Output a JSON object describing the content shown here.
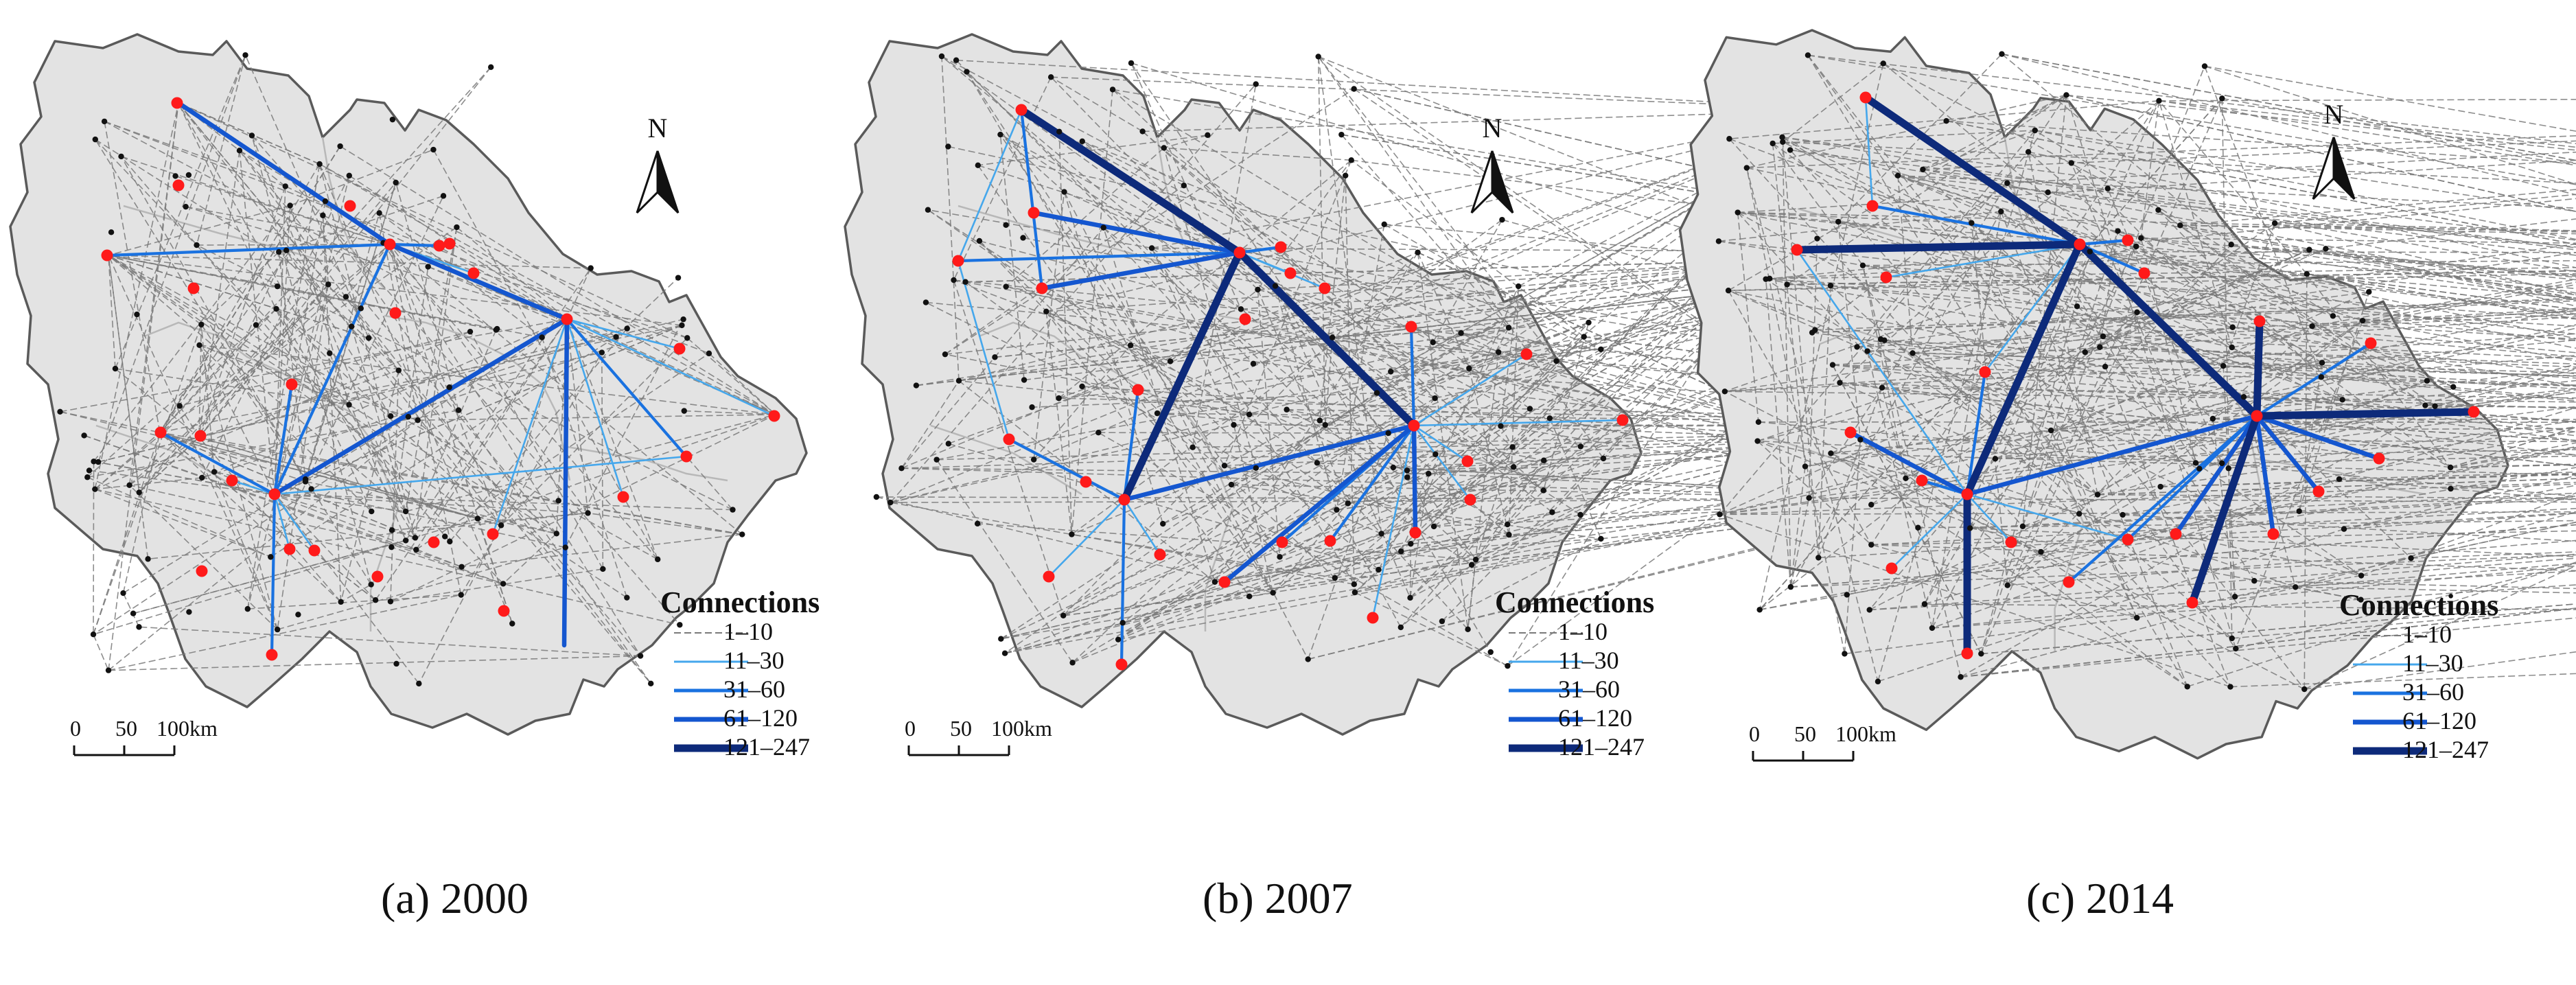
{
  "panels": [
    {
      "id": "a",
      "caption": "(a) 2000",
      "hubs": [
        [
          260,
          150
        ],
        [
          568,
          356
        ],
        [
          158,
          372
        ],
        [
          826,
          465
        ],
        [
          400,
          720
        ],
        [
          290,
          637
        ],
        [
          1130,
          604
        ],
        [
          233,
          630
        ]
      ],
      "red_nodes": [
        [
          258,
          150
        ],
        [
          568,
          356
        ],
        [
          156,
          372
        ],
        [
          282,
          420
        ],
        [
          510,
          300
        ],
        [
          640,
          358
        ],
        [
          655,
          355
        ],
        [
          690,
          398
        ],
        [
          576,
          456
        ],
        [
          826,
          465
        ],
        [
          990,
          508
        ],
        [
          1128,
          606
        ],
        [
          1000,
          665
        ],
        [
          908,
          724
        ],
        [
          718,
          778
        ],
        [
          632,
          790
        ],
        [
          550,
          840
        ],
        [
          734,
          890
        ],
        [
          400,
          720
        ],
        [
          425,
          560
        ],
        [
          292,
          635
        ],
        [
          234,
          630
        ],
        [
          338,
          700
        ],
        [
          422,
          800
        ],
        [
          458,
          802
        ],
        [
          396,
          954
        ],
        [
          294,
          832
        ],
        [
          260,
          270
        ]
      ],
      "edges": {
        "c11_30": [
          [
            400,
            720,
            1000,
            665
          ],
          [
            400,
            720,
            826,
            465
          ],
          [
            826,
            465,
            990,
            508
          ],
          [
            826,
            465,
            908,
            724
          ],
          [
            826,
            465,
            718,
            778
          ],
          [
            826,
            465,
            1128,
            606
          ],
          [
            400,
            720,
            338,
            700
          ],
          [
            400,
            720,
            458,
            802
          ],
          [
            400,
            720,
            422,
            800
          ],
          [
            568,
            356,
            690,
            398
          ],
          [
            568,
            356,
            826,
            465
          ],
          [
            826,
            465,
            1000,
            665
          ]
        ],
        "c31_60": [
          [
            568,
            356,
            158,
            372
          ],
          [
            568,
            356,
            400,
            720
          ],
          [
            568,
            356,
            640,
            358
          ],
          [
            400,
            720,
            396,
            954
          ],
          [
            400,
            720,
            425,
            560
          ],
          [
            400,
            720,
            234,
            630
          ],
          [
            826,
            465,
            1000,
            665
          ]
        ],
        "c61_120": [
          [
            260,
            150,
            568,
            356
          ],
          [
            568,
            356,
            826,
            465
          ],
          [
            826,
            465,
            822,
            940
          ],
          [
            400,
            720,
            826,
            465
          ]
        ],
        "c121_247": []
      }
    },
    {
      "id": "b",
      "caption": "(b) 2007",
      "hubs": [
        [
          1488,
          160
        ],
        [
          1806,
          368
        ],
        [
          1396,
          380
        ],
        [
          2060,
          620
        ],
        [
          1638,
          728
        ],
        [
          1470,
          640
        ]
      ],
      "red_nodes": [
        [
          1488,
          160
        ],
        [
          1506,
          310
        ],
        [
          1396,
          380
        ],
        [
          1518,
          420
        ],
        [
          1806,
          368
        ],
        [
          1866,
          360
        ],
        [
          1880,
          398
        ],
        [
          1930,
          420
        ],
        [
          1814,
          465
        ],
        [
          2060,
          620
        ],
        [
          2056,
          476
        ],
        [
          2224,
          516
        ],
        [
          2364,
          612
        ],
        [
          2142,
          728
        ],
        [
          2062,
          776
        ],
        [
          1938,
          788
        ],
        [
          1868,
          790
        ],
        [
          1784,
          848
        ],
        [
          1528,
          840
        ],
        [
          1638,
          728
        ],
        [
          1658,
          568
        ],
        [
          1582,
          702
        ],
        [
          1470,
          640
        ],
        [
          1690,
          808
        ],
        [
          1634,
          968
        ],
        [
          2000,
          900
        ],
        [
          2138,
          672
        ]
      ],
      "edges": {
        "c11_30": [
          [
            1488,
            160,
            1396,
            380
          ],
          [
            1396,
            380,
            1470,
            640
          ],
          [
            1806,
            368,
            1930,
            420
          ],
          [
            2060,
            620,
            2364,
            612
          ],
          [
            2060,
            620,
            2224,
            516
          ],
          [
            2060,
            620,
            2142,
            728
          ],
          [
            1638,
            728,
            1528,
            840
          ],
          [
            1638,
            728,
            1690,
            808
          ],
          [
            1806,
            368,
            1880,
            398
          ],
          [
            2060,
            620,
            2000,
            900
          ],
          [
            2060,
            620,
            2138,
            672
          ]
        ],
        "c31_60": [
          [
            1396,
            380,
            1806,
            368
          ],
          [
            1488,
            160,
            1518,
            420
          ],
          [
            1638,
            728,
            1634,
            968
          ],
          [
            1638,
            728,
            1470,
            640
          ],
          [
            1638,
            728,
            1658,
            568
          ],
          [
            2060,
            620,
            2056,
            476
          ],
          [
            2060,
            620,
            1938,
            788
          ],
          [
            2060,
            620,
            1868,
            790
          ],
          [
            1806,
            368,
            1866,
            360
          ]
        ],
        "c61_120": [
          [
            1806,
            368,
            1518,
            420
          ],
          [
            1638,
            728,
            2060,
            620
          ],
          [
            2060,
            620,
            1784,
            848
          ],
          [
            2060,
            620,
            2062,
            776
          ],
          [
            1806,
            368,
            1506,
            310
          ]
        ],
        "c121_247": [
          [
            1488,
            160,
            1806,
            368
          ],
          [
            1806,
            368,
            2060,
            620
          ],
          [
            1806,
            368,
            1638,
            728
          ]
        ]
      }
    },
    {
      "id": "c",
      "caption": "(c) 2014",
      "hubs": [
        [
          2718,
          142
        ],
        [
          3030,
          356
        ],
        [
          2618,
          364
        ],
        [
          3288,
          606
        ],
        [
          2866,
          720
        ],
        [
          3604,
          600
        ],
        [
          2696,
          630
        ],
        [
          3194,
          878
        ]
      ],
      "red_nodes": [
        [
          2718,
          142
        ],
        [
          2728,
          300
        ],
        [
          2618,
          364
        ],
        [
          2748,
          404
        ],
        [
          3030,
          356
        ],
        [
          3100,
          350
        ],
        [
          3124,
          398
        ],
        [
          3288,
          606
        ],
        [
          3292,
          468
        ],
        [
          3454,
          500
        ],
        [
          3604,
          600
        ],
        [
          3466,
          668
        ],
        [
          3378,
          716
        ],
        [
          3312,
          778
        ],
        [
          3170,
          778
        ],
        [
          3100,
          786
        ],
        [
          3014,
          848
        ],
        [
          3194,
          878
        ],
        [
          2866,
          720
        ],
        [
          2892,
          542
        ],
        [
          2800,
          700
        ],
        [
          2696,
          630
        ],
        [
          2756,
          828
        ],
        [
          2866,
          952
        ],
        [
          2930,
          790
        ]
      ],
      "edges": {
        "c11_30": [
          [
            3030,
            356,
            2618,
            364
          ],
          [
            3030,
            356,
            2748,
            404
          ],
          [
            3030,
            356,
            3288,
            606
          ],
          [
            3288,
            606,
            3466,
            668
          ],
          [
            3288,
            606,
            3378,
            716
          ],
          [
            2866,
            720,
            2756,
            828
          ],
          [
            2866,
            720,
            2930,
            790
          ],
          [
            2866,
            720,
            2696,
            630
          ],
          [
            2718,
            142,
            2728,
            300
          ],
          [
            3030,
            356,
            2892,
            542
          ],
          [
            3288,
            606,
            3604,
            600
          ],
          [
            2866,
            720,
            3100,
            786
          ],
          [
            2618,
            364,
            2866,
            720
          ],
          [
            2728,
            300,
            3030,
            356
          ],
          [
            3288,
            606,
            3014,
            848
          ],
          [
            2866,
            720,
            2800,
            700
          ],
          [
            3288,
            606,
            3454,
            500
          ],
          [
            3030,
            356,
            3124,
            398
          ],
          [
            3288,
            606,
            3194,
            878
          ]
        ],
        "c31_60": [
          [
            3030,
            356,
            2728,
            300
          ],
          [
            3288,
            606,
            3454,
            500
          ],
          [
            3288,
            606,
            3292,
            468
          ],
          [
            2866,
            720,
            2892,
            542
          ],
          [
            2866,
            720,
            2800,
            700
          ],
          [
            3030,
            356,
            3100,
            350
          ],
          [
            3030,
            356,
            3124,
            398
          ],
          [
            3288,
            606,
            3100,
            786
          ],
          [
            3288,
            606,
            3014,
            848
          ]
        ],
        "c61_120": [
          [
            3288,
            606,
            3466,
            668
          ],
          [
            3288,
            606,
            3378,
            716
          ],
          [
            3288,
            606,
            3170,
            778
          ],
          [
            2866,
            720,
            2696,
            630
          ],
          [
            3030,
            356,
            2618,
            364
          ],
          [
            2866,
            720,
            3288,
            606
          ],
          [
            3288,
            606,
            3312,
            778
          ]
        ],
        "c121_247": [
          [
            2718,
            142,
            3030,
            356
          ],
          [
            3030,
            356,
            3288,
            606
          ],
          [
            3030,
            356,
            2866,
            720
          ],
          [
            2866,
            720,
            2866,
            952
          ],
          [
            3288,
            606,
            3194,
            878
          ],
          [
            3288,
            606,
            3604,
            600
          ],
          [
            2618,
            364,
            3030,
            356
          ],
          [
            3288,
            606,
            3292,
            468
          ]
        ]
      }
    }
  ],
  "legend": {
    "title": "Connections",
    "classes": [
      "1–10",
      "11–30",
      "31–60",
      "61–120",
      "121–247"
    ]
  },
  "scale_bar": {
    "labels": [
      "0",
      "50",
      "100km"
    ]
  },
  "north_arrow": {
    "label": "N"
  },
  "colors": {
    "land": "#e3e3e3",
    "border": "#5a5a5a",
    "inner_border": "#b8b8b8",
    "c1_10": "#7a7a7a",
    "c11_30": "#45a7ec",
    "c31_60": "#1a72e0",
    "c61_120": "#1456cf",
    "c121_247": "#0d2a7a",
    "node": "#ff1a1a",
    "small_node": "#111111"
  }
}
